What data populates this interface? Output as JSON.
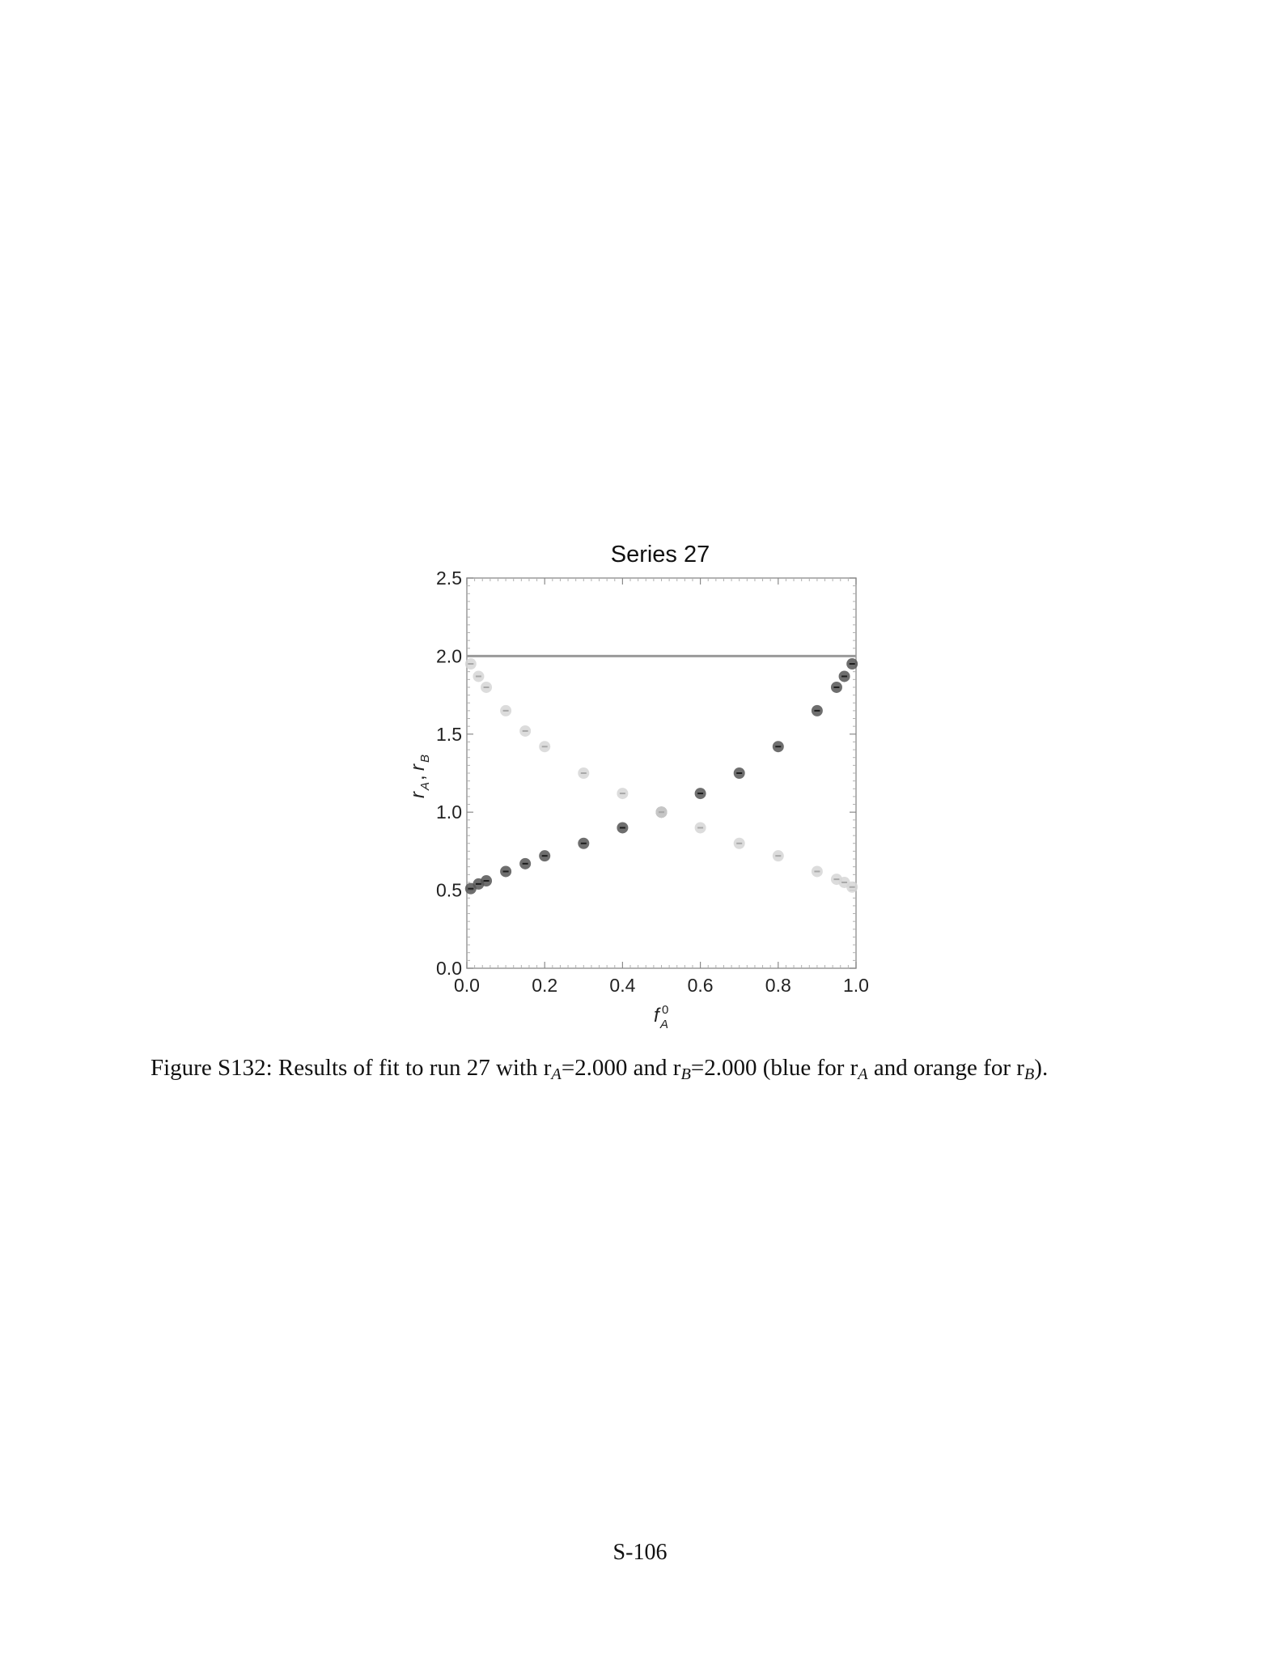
{
  "chart_data": {
    "type": "scatter",
    "title": "Series 27",
    "xlabel": "f_A^0",
    "ylabel": "r_A, r_B",
    "xlim": [
      0,
      1
    ],
    "ylim": [
      0,
      2.5
    ],
    "x_ticks": [
      "0.0",
      "0.2",
      "0.4",
      "0.6",
      "0.8",
      "1.0"
    ],
    "y_ticks": [
      "0.0",
      "0.5",
      "1.0",
      "1.5",
      "2.0",
      "2.5"
    ],
    "reference_line": {
      "y": 2.0,
      "color": "#9a9a9a"
    },
    "series": [
      {
        "color": "#555555",
        "points": [
          [
            0.01,
            0.51
          ],
          [
            0.03,
            0.54
          ],
          [
            0.05,
            0.56
          ],
          [
            0.1,
            0.62
          ],
          [
            0.15,
            0.67
          ],
          [
            0.2,
            0.72
          ],
          [
            0.3,
            0.8
          ],
          [
            0.4,
            0.9
          ],
          [
            0.5,
            1.0
          ],
          [
            0.6,
            1.12
          ],
          [
            0.7,
            1.25
          ],
          [
            0.8,
            1.42
          ],
          [
            0.9,
            1.65
          ],
          [
            0.95,
            1.8
          ],
          [
            0.97,
            1.87
          ],
          [
            0.99,
            1.95
          ]
        ]
      },
      {
        "color": "#d6d6d6",
        "points": [
          [
            0.01,
            1.95
          ],
          [
            0.03,
            1.87
          ],
          [
            0.05,
            1.8
          ],
          [
            0.1,
            1.65
          ],
          [
            0.15,
            1.52
          ],
          [
            0.2,
            1.42
          ],
          [
            0.3,
            1.25
          ],
          [
            0.4,
            1.12
          ],
          [
            0.5,
            1.0
          ],
          [
            0.6,
            0.9
          ],
          [
            0.7,
            0.8
          ],
          [
            0.8,
            0.72
          ],
          [
            0.9,
            0.62
          ],
          [
            0.95,
            0.57
          ],
          [
            0.97,
            0.55
          ],
          [
            0.99,
            0.52
          ]
        ]
      }
    ]
  },
  "caption": {
    "label": "Figure S132:",
    "t1": " Results of fit to run 27 with r",
    "s1": "A",
    "t2": "=2.000 and r",
    "s2": "B",
    "t3": "=2.000 (blue for r",
    "s3": "A",
    "t4": " and orange for r",
    "s4": "B",
    "t5": ")."
  },
  "page_number": "S-106"
}
